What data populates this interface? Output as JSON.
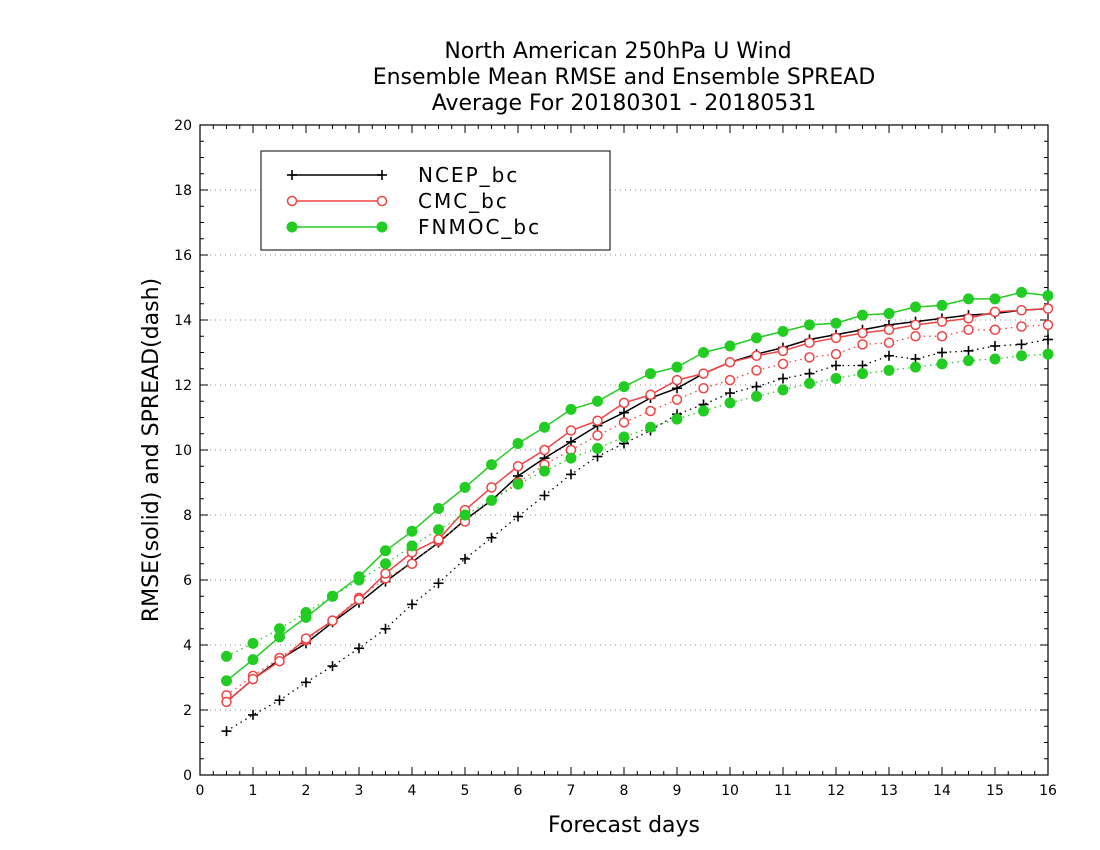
{
  "chart_data": {
    "type": "line",
    "title": [
      "North American 250hPa U Wind",
      "Ensemble Mean RMSE and Ensemble SPREAD",
      "Average For 20180301 - 20180531"
    ],
    "xlabel": "Forecast days",
    "ylabel": "RMSE(solid) and SPREAD(dash)",
    "xlim": [
      0,
      16
    ],
    "ylim": [
      0,
      20
    ],
    "xticks": [
      "0",
      "1",
      "2",
      "3",
      "4",
      "5",
      "6",
      "7",
      "8",
      "9",
      "10",
      "11",
      "12",
      "13",
      "14",
      "15",
      "16"
    ],
    "yticks": [
      "0",
      "2",
      "4",
      "6",
      "8",
      "10",
      "12",
      "14",
      "16",
      "18",
      "20"
    ],
    "grid": "horizontal dotted",
    "legend_position": "top-left",
    "x": [
      0.5,
      1,
      1.5,
      2,
      2.5,
      3,
      3.5,
      4,
      4.5,
      5,
      5.5,
      6,
      6.5,
      7,
      7.5,
      8,
      8.5,
      9,
      9.5,
      10,
      10.5,
      11,
      11.5,
      12,
      12.5,
      13,
      13.5,
      14,
      14.5,
      15,
      15.5,
      16
    ],
    "series": [
      {
        "name": "NCEP_bc",
        "color": "#000000",
        "marker": "plus",
        "rmse": [
          2.25,
          2.95,
          3.55,
          4.05,
          4.7,
          5.3,
          5.95,
          6.55,
          7.15,
          7.85,
          8.45,
          9.2,
          9.75,
          10.25,
          10.75,
          11.15,
          11.6,
          11.9,
          12.35,
          12.7,
          12.95,
          13.15,
          13.4,
          13.55,
          13.7,
          13.85,
          13.95,
          14.05,
          14.15,
          14.2,
          14.3,
          14.35
        ],
        "spread": [
          1.35,
          1.85,
          2.3,
          2.85,
          3.35,
          3.9,
          4.5,
          5.25,
          5.9,
          6.65,
          7.3,
          7.95,
          8.6,
          9.25,
          9.8,
          10.2,
          10.6,
          11.1,
          11.4,
          11.75,
          11.95,
          12.2,
          12.35,
          12.6,
          12.6,
          12.9,
          12.8,
          13.0,
          13.05,
          13.2,
          13.25,
          13.4
        ]
      },
      {
        "name": "CMC_bc",
        "color": "#ee4444",
        "marker": "open-circle",
        "rmse": [
          2.25,
          2.95,
          3.5,
          4.2,
          4.75,
          5.4,
          6.2,
          6.85,
          7.25,
          8.15,
          8.85,
          9.5,
          10.0,
          10.6,
          10.9,
          11.45,
          11.7,
          12.15,
          12.35,
          12.7,
          12.9,
          13.05,
          13.3,
          13.45,
          13.6,
          13.7,
          13.85,
          13.95,
          14.05,
          14.25,
          14.3,
          14.35
        ],
        "spread": [
          2.45,
          3.05,
          3.6,
          4.15,
          4.75,
          5.45,
          6.05,
          6.5,
          7.2,
          7.8,
          8.45,
          9.0,
          9.55,
          10.0,
          10.45,
          10.85,
          11.2,
          11.55,
          11.9,
          12.15,
          12.45,
          12.65,
          12.85,
          12.95,
          13.25,
          13.3,
          13.5,
          13.5,
          13.7,
          13.7,
          13.8,
          13.85
        ]
      },
      {
        "name": "FNMOC_bc",
        "color": "#22cc22",
        "marker": "filled-circle",
        "rmse": [
          2.9,
          3.55,
          4.25,
          4.85,
          5.5,
          6.1,
          6.9,
          7.5,
          8.2,
          8.85,
          9.55,
          10.2,
          10.7,
          11.25,
          11.5,
          11.95,
          12.35,
          12.55,
          13.0,
          13.2,
          13.45,
          13.65,
          13.85,
          13.9,
          14.15,
          14.2,
          14.4,
          14.45,
          14.65,
          14.65,
          14.85,
          14.75
        ],
        "spread": [
          3.65,
          4.05,
          4.5,
          5.0,
          5.5,
          6.0,
          6.5,
          7.05,
          7.55,
          8.0,
          8.45,
          8.95,
          9.35,
          9.75,
          10.05,
          10.4,
          10.7,
          10.95,
          11.2,
          11.45,
          11.65,
          11.85,
          12.05,
          12.2,
          12.35,
          12.45,
          12.55,
          12.65,
          12.75,
          12.8,
          12.9,
          12.95
        ]
      }
    ]
  }
}
